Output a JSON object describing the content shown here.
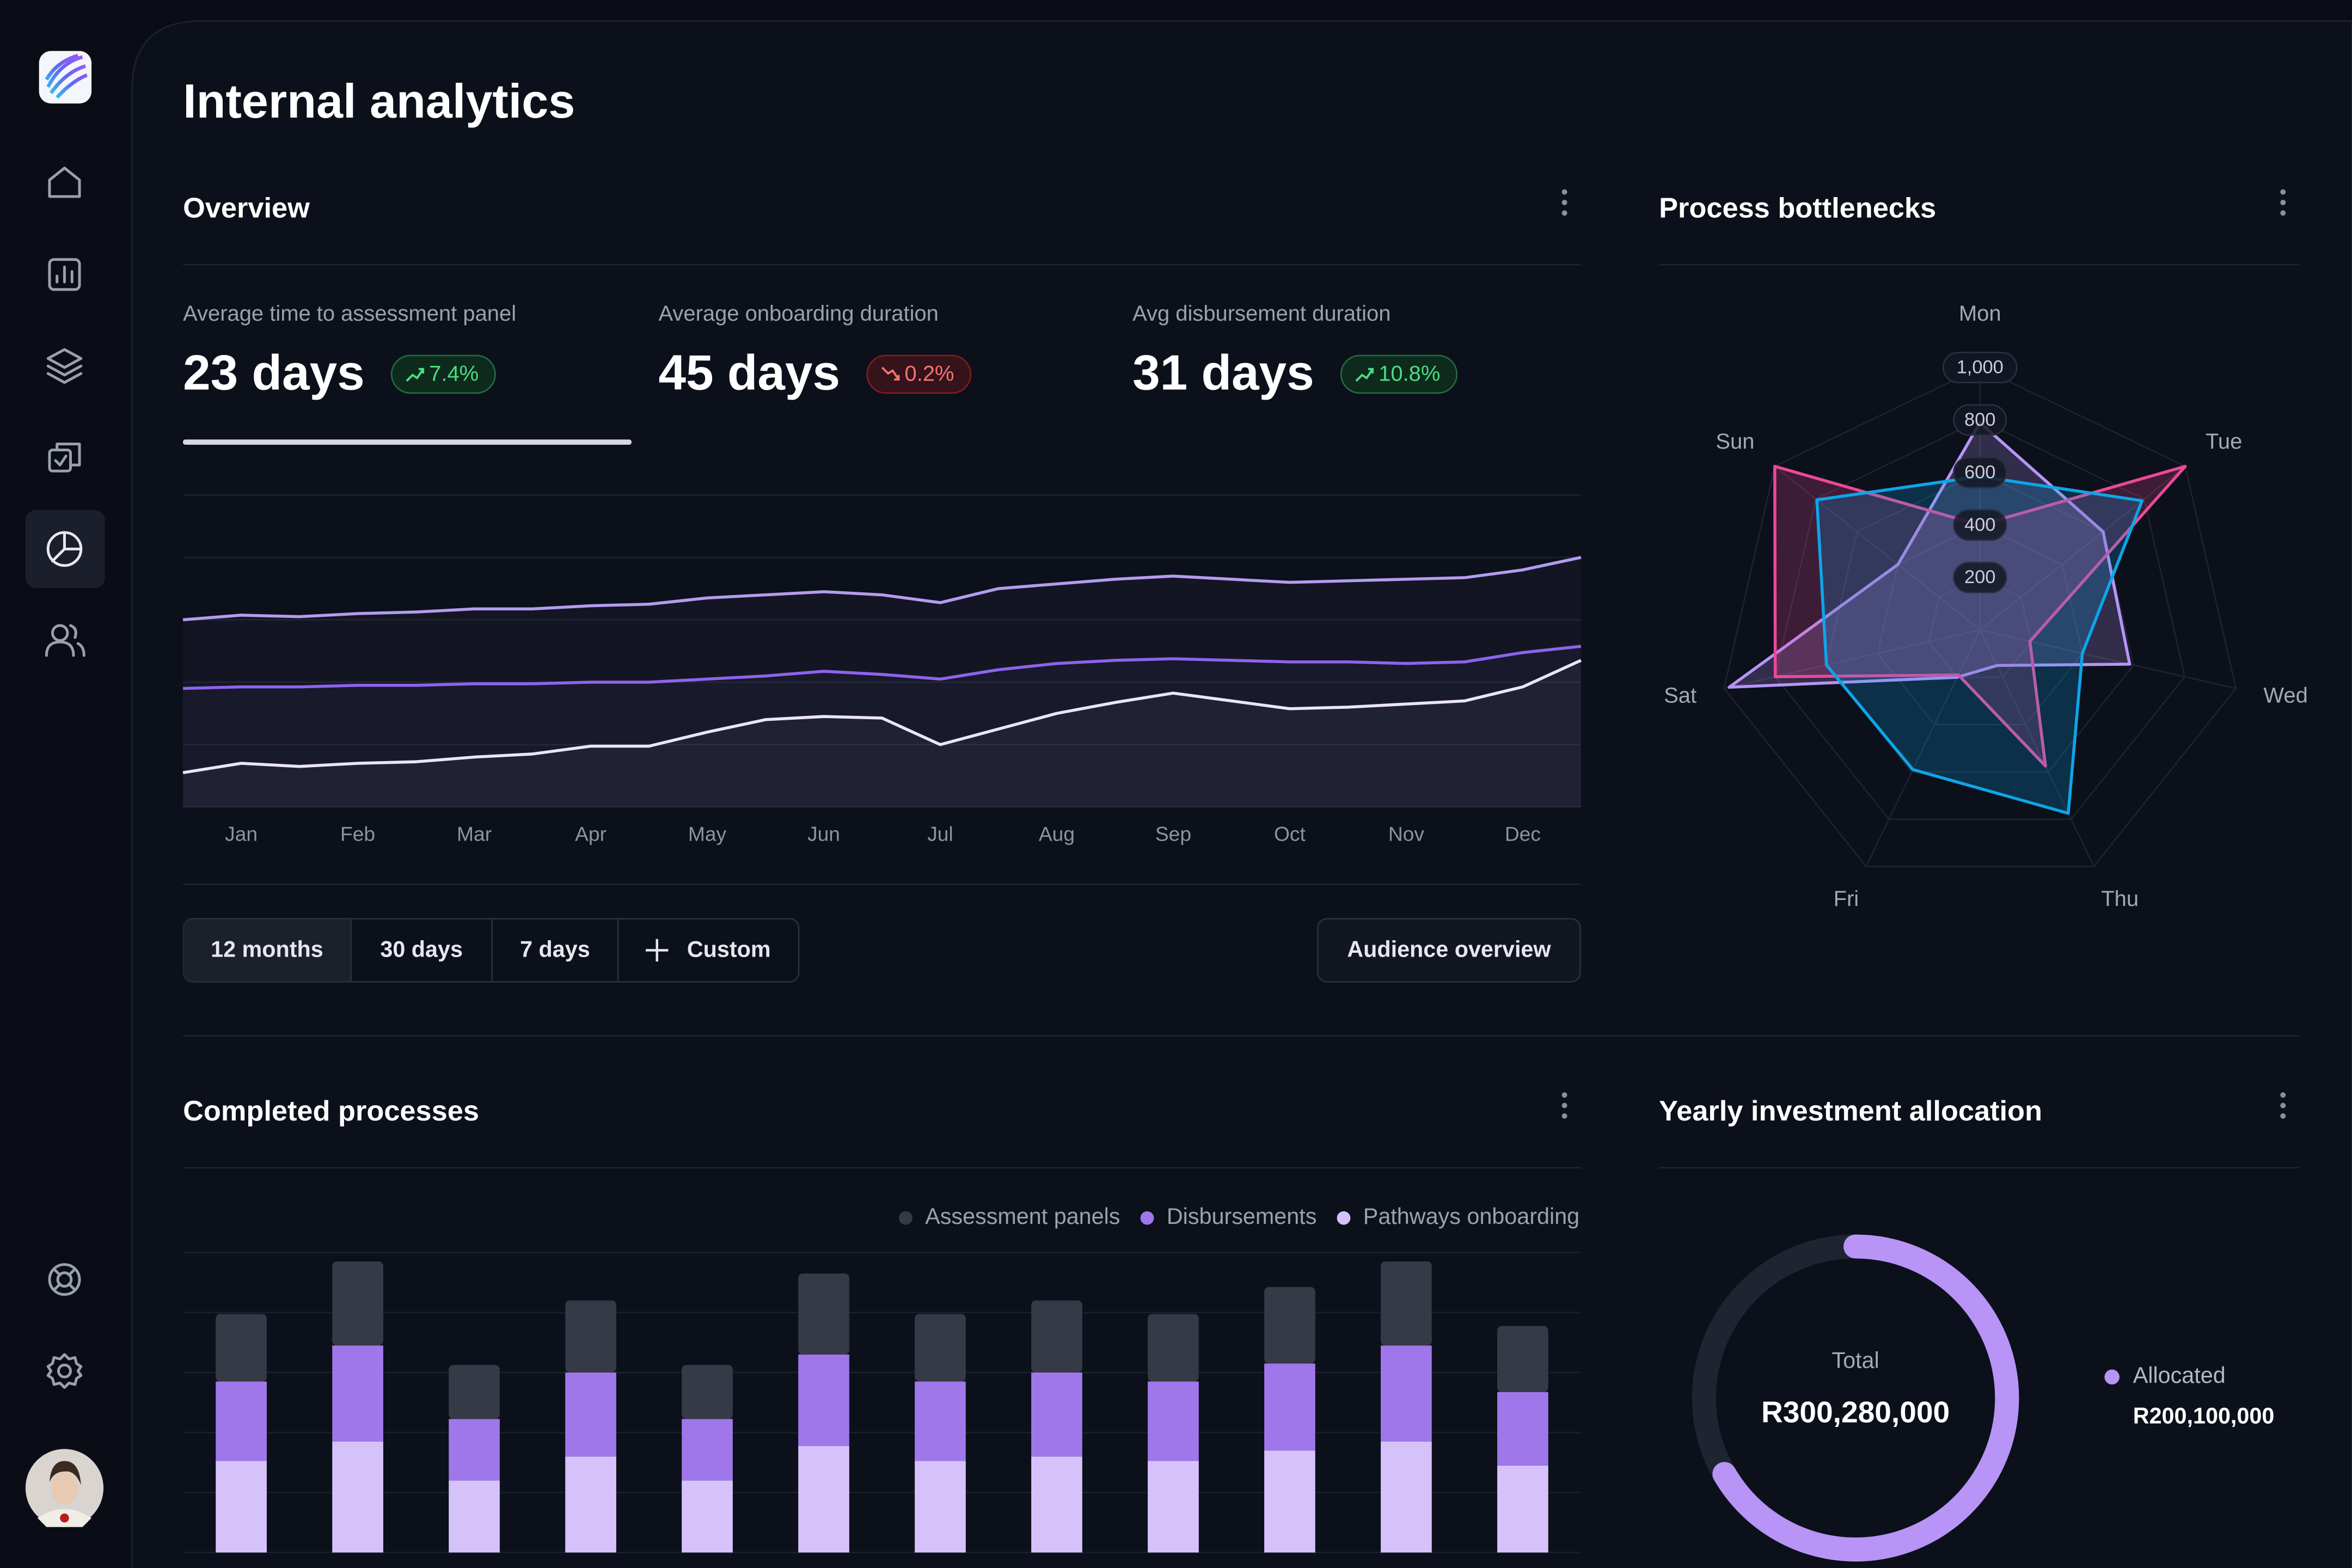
{
  "header": {
    "title": "Internal analytics"
  },
  "overview": {
    "title": "Overview",
    "selected": 0,
    "stats": [
      {
        "label": "Average time to assessment panel",
        "value": "23 days",
        "change": "7.4%",
        "trend": "up"
      },
      {
        "label": "Average onboarding duration",
        "value": "45 days",
        "change": "0.2%",
        "trend": "down"
      },
      {
        "label": "Avg disbursement duration",
        "value": "31 days",
        "change": "10.8%",
        "trend": "up"
      }
    ],
    "ranges": [
      "12 months",
      "30 days",
      "7 days",
      "Custom"
    ],
    "active_range": 0,
    "action": "Audience overview"
  },
  "chart_data": [
    {
      "type": "line",
      "categories": [
        null,
        "Jan",
        null,
        "Feb",
        null,
        "Mar",
        null,
        "Apr",
        null,
        "May",
        null,
        "Jun",
        null,
        "Jul",
        null,
        "Aug",
        null,
        "Sep",
        null,
        "Oct",
        null,
        "Nov",
        null,
        "Dec",
        null
      ],
      "ylim": [
        0,
        100
      ],
      "yticks": [
        0,
        20,
        40,
        60,
        80,
        100
      ],
      "grid": true,
      "series": [
        {
          "color": "#b49cf0",
          "values": [
            60,
            61.5,
            61,
            62,
            62.5,
            63.5,
            63.5,
            64.5,
            65,
            67,
            68,
            69,
            68,
            65.5,
            70,
            71.5,
            73,
            74,
            73,
            72,
            72.5,
            73,
            73.5,
            76,
            80
          ]
        },
        {
          "color": "#8e63ee",
          "values": [
            38,
            38.5,
            38.5,
            39,
            39,
            39.5,
            39.5,
            40,
            40,
            41,
            42,
            43.5,
            42.5,
            41,
            44,
            46,
            47,
            47.5,
            47,
            46.5,
            46.5,
            46,
            46.5,
            49.5,
            51.5
          ]
        },
        {
          "color": "#ece4ff",
          "values": [
            11,
            14,
            13,
            14,
            14.5,
            16,
            17,
            19.5,
            19.5,
            24,
            28,
            29,
            28.5,
            20,
            25,
            30,
            33.5,
            36.5,
            34,
            31.5,
            32,
            33,
            34,
            38.5,
            47
          ]
        }
      ]
    },
    {
      "type": "radar",
      "title": "Process bottlenecks",
      "categories": [
        "Mon",
        "Tue",
        "Wed",
        "Thu",
        "Fri",
        "Sat",
        "Sun"
      ],
      "rlim": [
        0,
        1000
      ],
      "rticks": [
        200,
        400,
        600,
        800,
        {
          "value": 1000,
          "label": "1,000"
        }
      ],
      "series": [
        {
          "color": "#b794f6",
          "values": [
            790,
            600,
            585,
            150,
            200,
            980,
            400
          ]
        },
        {
          "color": "#ec4899",
          "values": [
            400,
            1000,
            195,
            575,
            190,
            800,
            1000
          ]
        },
        {
          "color": "#0ea5e9",
          "values": [
            585,
            790,
            400,
            775,
            590,
            600,
            795
          ]
        }
      ]
    },
    {
      "type": "bar",
      "title": "Completed processes",
      "stacked": true,
      "ylim": [
        0,
        200
      ],
      "yticks": [
        0,
        40,
        80,
        120,
        160,
        200
      ],
      "grid": true,
      "series": [
        {
          "name": "Assessment panels",
          "color": "#363a46",
          "values": [
            45,
            56,
            36,
            48,
            36,
            54,
            45,
            48,
            45,
            51,
            56,
            44
          ]
        },
        {
          "name": "Disbursements",
          "color": "#9f77ea",
          "values": [
            53,
            64,
            41,
            56,
            41,
            61,
            53,
            56,
            53,
            58,
            64,
            49
          ]
        },
        {
          "name": "Pathways onboarding",
          "color": "#d6c2fb",
          "values": [
            61,
            74,
            48,
            64,
            48,
            71,
            61,
            64,
            61,
            68,
            74,
            58
          ]
        }
      ]
    },
    {
      "type": "donut",
      "title": "Yearly investment allocation",
      "center_label": "Total",
      "total": 300280000,
      "total_label": "R300,280,000",
      "series": [
        {
          "name": "Allocated",
          "color": "#b794f6",
          "values": [
            200100000
          ],
          "value_labels": [
            "R200,100,000"
          ]
        }
      ]
    }
  ]
}
